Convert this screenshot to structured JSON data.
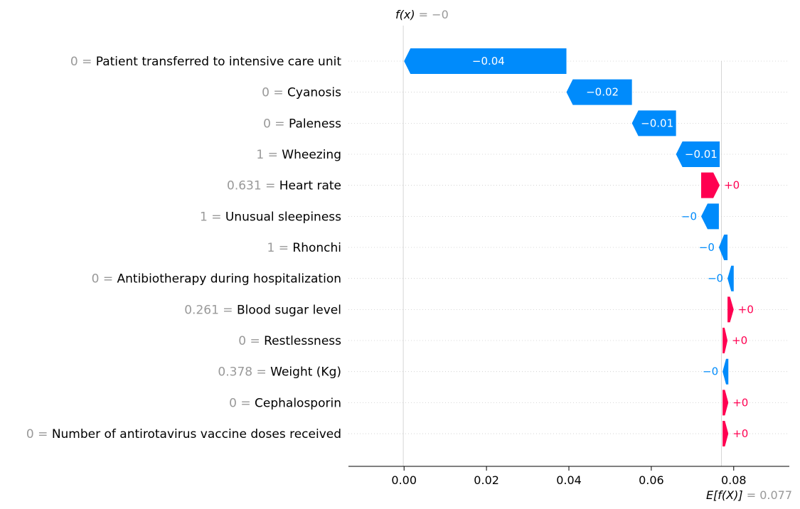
{
  "chart_data": {
    "type": "waterfall",
    "fx": {
      "label": "f(x)",
      "equals": " = ",
      "value_text": "−0",
      "value": -0.0002
    },
    "efx": {
      "label": "E[f(X)]",
      "equals": " = ",
      "value_text": "0.077",
      "value": 0.077
    },
    "xlim": [
      -0.0135,
      0.0935
    ],
    "xticks": [
      {
        "value": 0.0,
        "label": "0.00"
      },
      {
        "value": 0.02,
        "label": "0.02"
      },
      {
        "value": 0.04,
        "label": "0.04"
      },
      {
        "value": 0.06,
        "label": "0.06"
      },
      {
        "value": 0.08,
        "label": "0.08"
      }
    ],
    "features": [
      {
        "value": "0",
        "name": "Patient transferred to intensive care unit",
        "left": 0.0,
        "right": 0.0394,
        "sign": "neg",
        "label": "−0.04"
      },
      {
        "value": "0",
        "name": "Cyanosis",
        "left": 0.0394,
        "right": 0.0553,
        "sign": "neg",
        "label": "−0.02"
      },
      {
        "value": "0",
        "name": "Paleness",
        "left": 0.0553,
        "right": 0.066,
        "sign": "neg",
        "label": "−0.01"
      },
      {
        "value": "1",
        "name": "Wheezing",
        "left": 0.066,
        "right": 0.0766,
        "sign": "neg",
        "label": "−0.01"
      },
      {
        "value": "0.631",
        "name": "Heart rate",
        "left": 0.0721,
        "right": 0.0766,
        "sign": "pos",
        "label": "+0"
      },
      {
        "value": "1",
        "name": "Unusual sleepiness",
        "left": 0.0721,
        "right": 0.0764,
        "sign": "neg",
        "label": "−0"
      },
      {
        "value": "1",
        "name": "Rhonchi",
        "left": 0.0764,
        "right": 0.0785,
        "sign": "neg",
        "label": "−0"
      },
      {
        "value": "0",
        "name": "Antibiotherapy during hospitalization",
        "left": 0.0785,
        "right": 0.08,
        "sign": "neg",
        "label": "−0"
      },
      {
        "value": "0.261",
        "name": "Blood sugar level",
        "left": 0.0785,
        "right": 0.08,
        "sign": "pos",
        "label": "+0"
      },
      {
        "value": "0",
        "name": "Restlessness",
        "left": 0.0773,
        "right": 0.0785,
        "sign": "pos",
        "label": "+0"
      },
      {
        "value": "0.378",
        "name": "Weight (Kg)",
        "left": 0.0773,
        "right": 0.0787,
        "sign": "neg",
        "label": "−0"
      },
      {
        "value": "0",
        "name": "Cephalosporin",
        "left": 0.0773,
        "right": 0.0787,
        "sign": "pos",
        "label": "+0"
      },
      {
        "value": "0",
        "name": "Number of antirotavirus vaccine doses received",
        "left": 0.0773,
        "right": 0.0787,
        "sign": "pos",
        "label": "+0"
      }
    ],
    "colors": {
      "negative": "#008bfb",
      "positive": "#ff0051",
      "value_text": "#999999",
      "text": "#000000",
      "grid": "#cccccc",
      "ref_line": "#bbbbbb"
    }
  }
}
